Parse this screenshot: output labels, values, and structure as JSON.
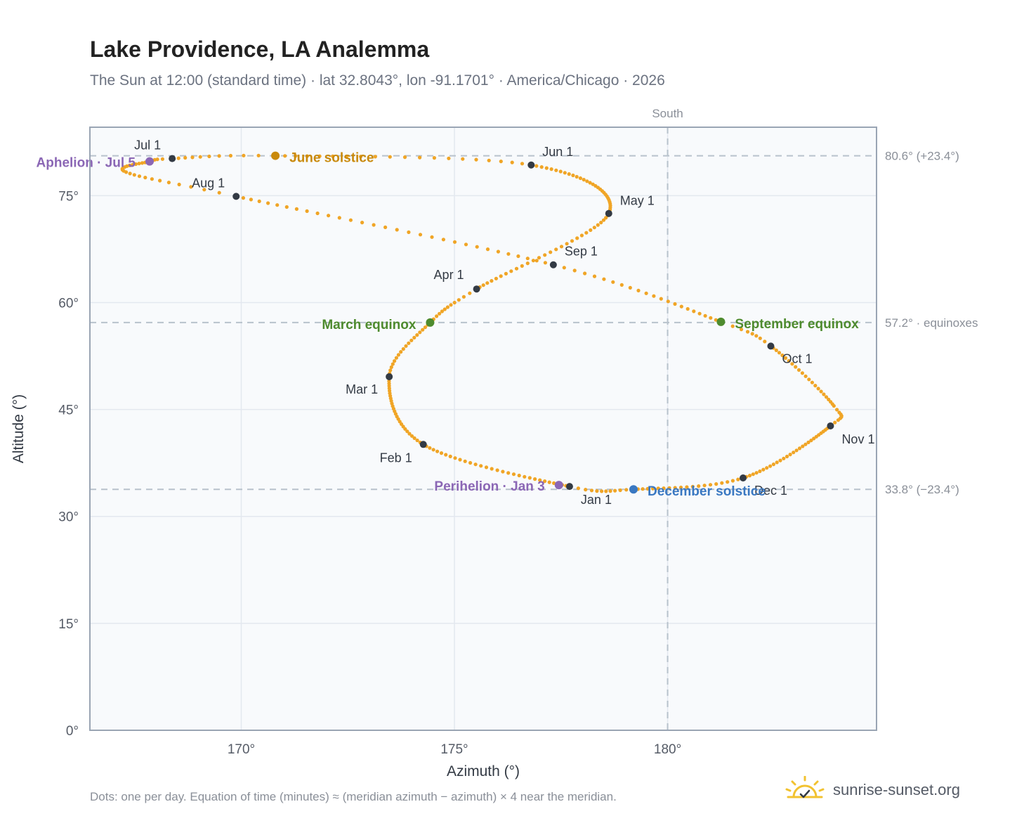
{
  "header": {
    "title": "Lake Providence, LA Analemma",
    "subtitle": "The Sun at 12:00 (standard time) · lat 32.8043°, lon -91.1701° · America/Chicago · 2026"
  },
  "footer": {
    "note": "Dots: one per day. Equation of time (minutes) ≈ (meridian azimuth − azimuth) × 4 near the meridian.",
    "brand": "sunrise-sunset.org"
  },
  "colors": {
    "path": "#f0a526",
    "month_marker": "#333a44",
    "solstice_june": "#c98a0c",
    "equinox": "#4e8b2e",
    "solstice_december": "#3a78c2",
    "apsis": "#8b67b5",
    "reference_line": "#b8c2cc",
    "logo": "#f2c230"
  },
  "icons": {
    "brand": "sun-logo-icon"
  },
  "chart_data": {
    "type": "scatter",
    "xlabel": "Azimuth (°)",
    "ylabel": "Altitude (°)",
    "xlim": [
      166.45,
      184.9
    ],
    "ylim": [
      0,
      84.6
    ],
    "xticks": [
      170,
      175,
      180
    ],
    "xtick_labels": [
      "170°",
      "175°",
      "180°"
    ],
    "yticks": [
      0,
      15,
      30,
      45,
      60,
      75
    ],
    "ytick_labels": [
      "0°",
      "15°",
      "30°",
      "45°",
      "60°",
      "75°"
    ],
    "grid": true,
    "meridian": {
      "azimuth": 180,
      "label": "South"
    },
    "reference_lines": [
      {
        "altitude": 80.6,
        "label": "80.6° (+23.4°)"
      },
      {
        "altitude": 57.2,
        "label": "57.2° · equinoxes"
      },
      {
        "altitude": 33.8,
        "label": "33.8° (−23.4°)"
      }
    ],
    "month_markers": [
      {
        "label": "Jan 1",
        "azimuth": 177.7,
        "altitude": 34.2
      },
      {
        "label": "Feb 1",
        "azimuth": 174.27,
        "altitude": 40.1
      },
      {
        "label": "Mar 1",
        "azimuth": 173.47,
        "altitude": 49.6
      },
      {
        "label": "Apr 1",
        "azimuth": 175.52,
        "altitude": 61.9
      },
      {
        "label": "May 1",
        "azimuth": 178.62,
        "altitude": 72.5
      },
      {
        "label": "Jun 1",
        "azimuth": 176.8,
        "altitude": 79.3
      },
      {
        "label": "Jul 1",
        "azimuth": 168.38,
        "altitude": 80.2
      },
      {
        "label": "Aug 1",
        "azimuth": 169.88,
        "altitude": 74.9
      },
      {
        "label": "Sep 1",
        "azimuth": 177.32,
        "altitude": 65.3
      },
      {
        "label": "Oct 1",
        "azimuth": 182.42,
        "altitude": 53.9
      },
      {
        "label": "Nov 1",
        "azimuth": 183.82,
        "altitude": 42.7
      },
      {
        "label": "Dec 1",
        "azimuth": 181.77,
        "altitude": 35.4
      }
    ],
    "events": [
      {
        "label": "June solstice",
        "azimuth": 170.8,
        "altitude": 80.6
      },
      {
        "label": "March equinox",
        "azimuth": 174.43,
        "altitude": 57.2
      },
      {
        "label": "September equinox",
        "azimuth": 181.25,
        "altitude": 57.3
      },
      {
        "label": "December solstice",
        "azimuth": 179.2,
        "altitude": 33.8
      },
      {
        "label": "Aphelion · Jul 5",
        "azimuth": 167.85,
        "altitude": 79.8
      },
      {
        "label": "Perihelion · Jan 3",
        "azimuth": 177.45,
        "altitude": 34.4
      }
    ]
  }
}
